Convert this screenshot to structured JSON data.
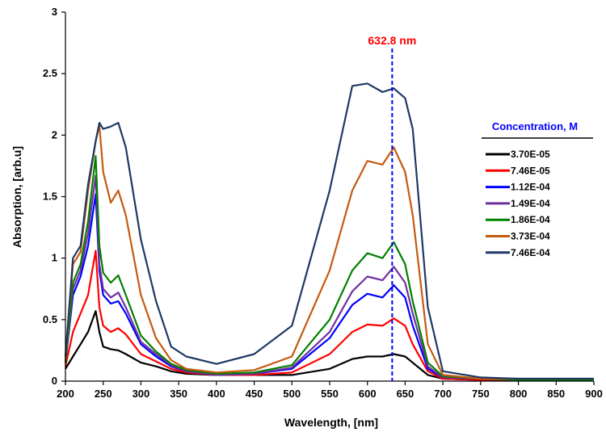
{
  "chart_data": {
    "type": "line",
    "title": "",
    "xlabel": "Wavelength, [nm]",
    "ylabel": "Absorption, [arb.u]",
    "xlim": [
      200,
      900
    ],
    "ylim": [
      0,
      3
    ],
    "xticks": [
      200,
      250,
      300,
      350,
      400,
      450,
      500,
      550,
      600,
      650,
      700,
      750,
      800,
      850,
      900
    ],
    "yticks": [
      0,
      0.5,
      1,
      1.5,
      2,
      2.5,
      3
    ],
    "ytick_labels": [
      "0",
      "0.5",
      "1",
      "1.5",
      "2",
      "2.5",
      "3"
    ],
    "grid": false,
    "legend": {
      "title": "Concentration, M",
      "position": "right"
    },
    "annotation": {
      "label": "632.8 nm",
      "x": 632.8,
      "color": "#0000ff",
      "text_color": "#ff0000"
    },
    "x": [
      200,
      210,
      220,
      230,
      240,
      245,
      250,
      260,
      270,
      280,
      300,
      320,
      340,
      360,
      400,
      450,
      500,
      550,
      580,
      600,
      620,
      635,
      650,
      660,
      680,
      700,
      750,
      800,
      900
    ],
    "series": [
      {
        "name": "3.70E-05",
        "color": "#000000",
        "values": [
          0.1,
          0.2,
          0.3,
          0.4,
          0.57,
          0.4,
          0.28,
          0.26,
          0.25,
          0.22,
          0.15,
          0.12,
          0.08,
          0.06,
          0.05,
          0.05,
          0.05,
          0.1,
          0.18,
          0.2,
          0.2,
          0.22,
          0.2,
          0.15,
          0.05,
          0.02,
          0.01,
          0.01,
          0.01
        ]
      },
      {
        "name": "7.46E-05",
        "color": "#ff0000",
        "values": [
          0.12,
          0.4,
          0.55,
          0.7,
          1.06,
          0.6,
          0.45,
          0.4,
          0.43,
          0.38,
          0.22,
          0.16,
          0.1,
          0.07,
          0.05,
          0.05,
          0.07,
          0.22,
          0.4,
          0.46,
          0.45,
          0.51,
          0.45,
          0.3,
          0.08,
          0.02,
          0.01,
          0.01,
          0.01
        ]
      },
      {
        "name": "1.12E-04",
        "color": "#0000ff",
        "values": [
          0.15,
          0.7,
          0.85,
          1.1,
          1.52,
          0.9,
          0.7,
          0.63,
          0.65,
          0.55,
          0.3,
          0.2,
          0.12,
          0.08,
          0.05,
          0.06,
          0.1,
          0.35,
          0.62,
          0.71,
          0.68,
          0.78,
          0.68,
          0.45,
          0.1,
          0.03,
          0.02,
          0.01,
          0.01
        ]
      },
      {
        "name": "1.49E-04",
        "color": "#7030a0",
        "values": [
          0.15,
          0.75,
          0.9,
          1.2,
          1.67,
          0.95,
          0.75,
          0.68,
          0.72,
          0.6,
          0.32,
          0.22,
          0.13,
          0.08,
          0.05,
          0.06,
          0.11,
          0.4,
          0.73,
          0.85,
          0.82,
          0.93,
          0.8,
          0.55,
          0.12,
          0.03,
          0.02,
          0.01,
          0.01
        ]
      },
      {
        "name": "1.86E-04",
        "color": "#008000",
        "values": [
          0.15,
          0.8,
          0.95,
          1.3,
          1.83,
          1.1,
          0.88,
          0.8,
          0.86,
          0.7,
          0.37,
          0.24,
          0.14,
          0.09,
          0.06,
          0.07,
          0.13,
          0.5,
          0.9,
          1.04,
          1.0,
          1.13,
          0.95,
          0.65,
          0.15,
          0.04,
          0.02,
          0.01,
          0.01
        ]
      },
      {
        "name": "3.73E-04",
        "color": "#c55a11",
        "values": [
          0.18,
          0.95,
          1.05,
          1.55,
          1.95,
          2.08,
          1.7,
          1.45,
          1.55,
          1.35,
          0.7,
          0.35,
          0.17,
          0.1,
          0.07,
          0.09,
          0.2,
          0.9,
          1.55,
          1.79,
          1.76,
          1.9,
          1.7,
          1.35,
          0.3,
          0.05,
          0.02,
          0.02,
          0.02
        ]
      },
      {
        "name": "7.46E-04",
        "color": "#1f3864",
        "values": [
          0.2,
          1.0,
          1.1,
          1.6,
          1.95,
          2.1,
          2.05,
          2.07,
          2.1,
          1.9,
          1.15,
          0.65,
          0.28,
          0.2,
          0.14,
          0.22,
          0.45,
          1.55,
          2.4,
          2.42,
          2.35,
          2.38,
          2.3,
          2.05,
          0.6,
          0.08,
          0.03,
          0.02,
          0.02
        ]
      }
    ]
  }
}
